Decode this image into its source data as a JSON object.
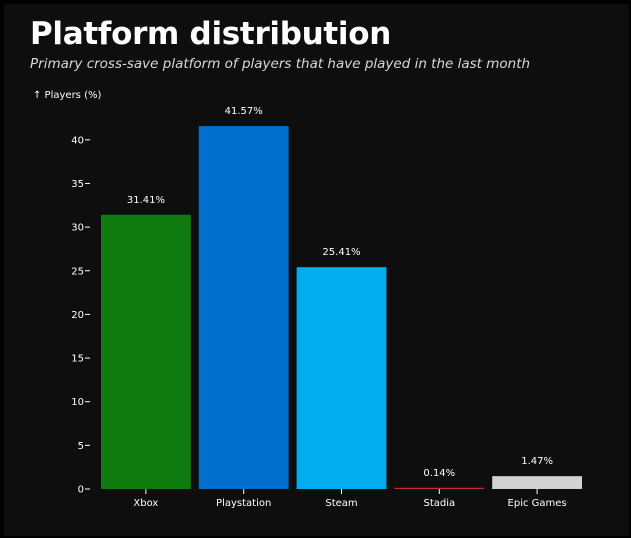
{
  "title": "Platform distribution",
  "subtitle": "Primary cross-save platform of players that have played in the last month",
  "chart_data": {
    "type": "bar",
    "categories": [
      "Xbox",
      "Playstation",
      "Steam",
      "Stadia",
      "Epic Games"
    ],
    "values": [
      31.41,
      41.57,
      25.41,
      0.14,
      1.47
    ],
    "value_labels": [
      "31.41%",
      "41.57%",
      "25.41%",
      "0.14%",
      "1.47%"
    ],
    "colors": [
      "#107c10",
      "#006fcd",
      "#00adef",
      "#cd2640",
      "#d2d2d2"
    ],
    "ylabel": "↑ Players (%)",
    "xlabel": "",
    "ylim": [
      0,
      42
    ],
    "yticks": [
      0,
      5,
      10,
      15,
      20,
      25,
      30,
      35,
      40
    ],
    "grid": false,
    "legend": "none"
  }
}
